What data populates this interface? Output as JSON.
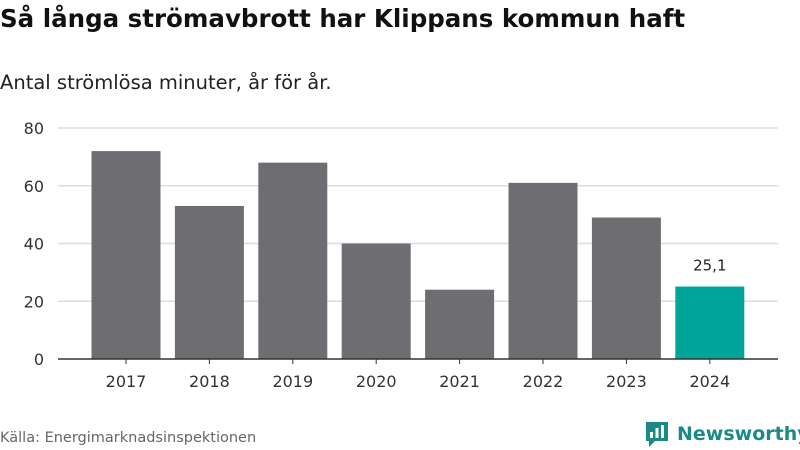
{
  "title": "Så långa strömavbrott har Klippans kommun haft",
  "subtitle": "Antal strömlösa minuter, år för år.",
  "source": "Källa: Energimarknadsinspektionen",
  "brand": "Newsworthy",
  "colors": {
    "bar": "#6e6d72",
    "highlight": "#00a59a",
    "grid": "#dddddd",
    "axis": "#333333",
    "text": "#333333",
    "brand": "#1b8a87"
  },
  "chart_data": {
    "type": "bar",
    "categories": [
      "2017",
      "2018",
      "2019",
      "2020",
      "2021",
      "2022",
      "2023",
      "2024"
    ],
    "values": [
      72,
      53,
      68,
      40,
      24,
      61,
      49,
      25.1
    ],
    "highlight_index": 7,
    "data_labels": [
      {
        "index": 7,
        "text": "25,1"
      }
    ],
    "title": "Så långa strömavbrott har Klippans kommun haft",
    "subtitle": "Antal strömlösa minuter, år för år.",
    "xlabel": "",
    "ylabel": "",
    "ylim": [
      0,
      80
    ],
    "yticks": [
      0,
      20,
      40,
      60,
      80
    ],
    "grid": true,
    "legend": "none"
  }
}
